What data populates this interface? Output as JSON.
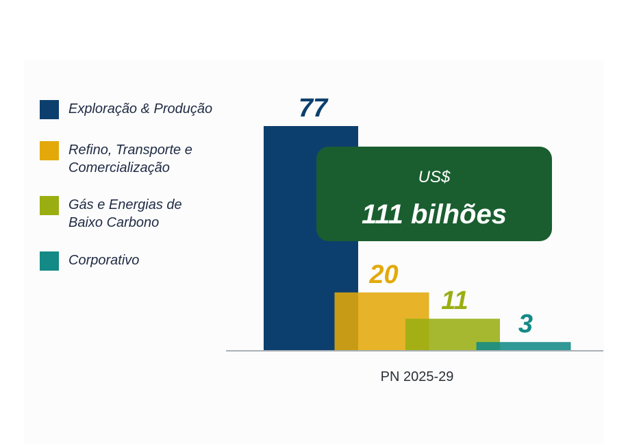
{
  "chart_data": {
    "type": "bar",
    "categories": [
      "PN 2025-29"
    ],
    "series": [
      {
        "name": "Exploração & Produção",
        "color": "#0d3f6e",
        "values": [
          77
        ]
      },
      {
        "name": "Refino, Transporte e Comercialização",
        "color": "#e3a90b",
        "values": [
          20
        ]
      },
      {
        "name": "Gás e Energias de Baixo Carbono",
        "color": "#9aae12",
        "values": [
          11
        ]
      },
      {
        "name": "Corporativo",
        "color": "#138a86",
        "values": [
          3
        ]
      }
    ],
    "annotation": {
      "currency": "US$",
      "total": "111 bilhões",
      "color": "#1a5e30"
    },
    "legend": "left"
  }
}
